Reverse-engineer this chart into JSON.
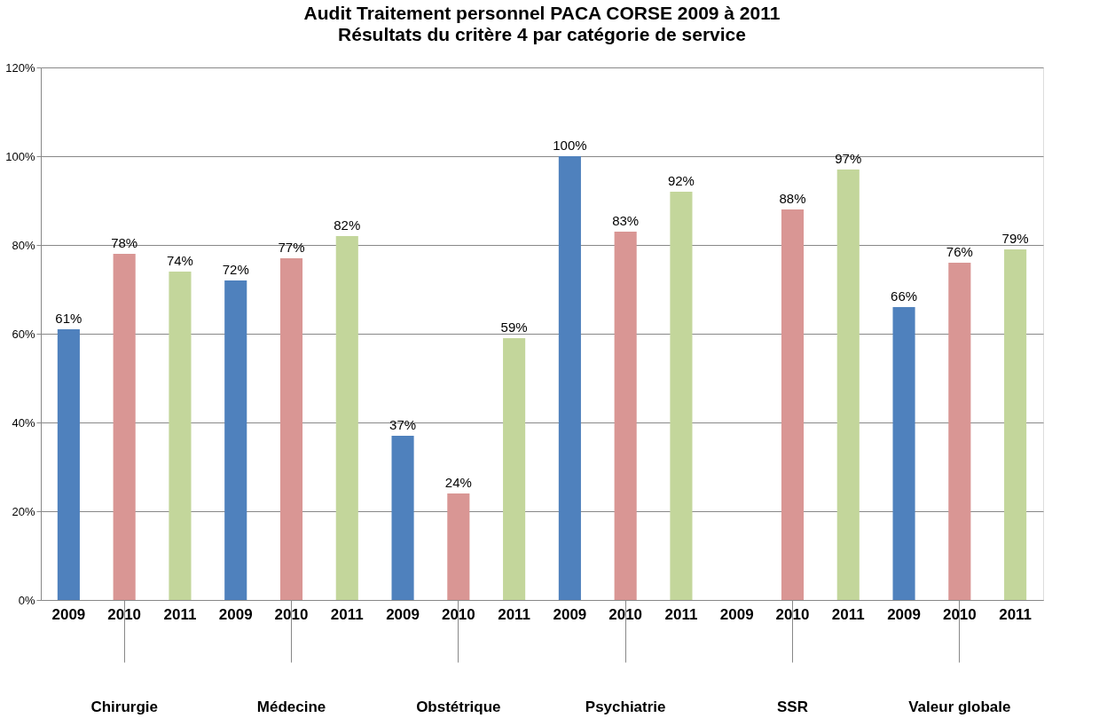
{
  "chart_data": {
    "type": "bar",
    "title": "Audit Traitement personnel PACA CORSE 2009 à 2011",
    "subtitle": "Résultats du critère 4 par catégorie de service",
    "categories": [
      "Chirurgie",
      "Médecine",
      "Obstétrique",
      "Psychiatrie",
      "SSR",
      "Valeur globale"
    ],
    "series": [
      {
        "name": "2009",
        "color": "#4f81bd",
        "values": [
          61,
          72,
          37,
          100,
          null,
          66
        ],
        "value_labels": [
          "61%",
          "72%",
          "37%",
          "100%",
          null,
          "66%"
        ]
      },
      {
        "name": "2010",
        "color": "#d99694",
        "values": [
          78,
          77,
          24,
          83,
          88,
          76
        ],
        "value_labels": [
          "78%",
          "77%",
          "24%",
          "83%",
          "88%",
          "76%"
        ]
      },
      {
        "name": "2011",
        "color": "#c3d69b",
        "values": [
          74,
          82,
          59,
          92,
          97,
          79
        ],
        "value_labels": [
          "74%",
          "82%",
          "59%",
          "92%",
          "97%",
          "79%"
        ]
      }
    ],
    "ylim": [
      0,
      120
    ],
    "yticks": [
      {
        "value": 0,
        "label": "0%"
      },
      {
        "value": 20,
        "label": "20%"
      },
      {
        "value": 40,
        "label": "40%"
      },
      {
        "value": 60,
        "label": "60%"
      },
      {
        "value": 80,
        "label": "80%"
      },
      {
        "value": 100,
        "label": "100%"
      },
      {
        "value": 120,
        "label": "120%"
      }
    ],
    "grid": "y",
    "legend": false
  }
}
